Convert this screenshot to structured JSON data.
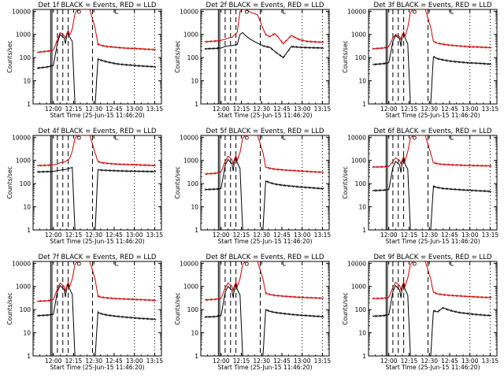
{
  "colors": {
    "events": "#000000",
    "lld": "#cc0000",
    "background": "#ffffff"
  },
  "chart_data": [
    {
      "type": "line",
      "title": "Det 1f BLACK = Events, RED = LLD",
      "xlabel": "Start Time (25-Jun-15 11:46:20)",
      "ylabel": "Counts/sec",
      "xticks": [
        "12:00",
        "12:15",
        "12:30",
        "12:45",
        "13:00",
        "13:15"
      ],
      "yticks": [
        "1",
        "10",
        "100",
        "1000",
        "10000"
      ],
      "x_minutes": [
        -12,
        -4,
        0,
        3,
        5,
        8,
        9,
        10,
        11,
        12,
        14,
        16,
        18,
        22,
        27,
        31,
        33,
        36,
        40,
        46,
        52,
        58,
        64,
        70,
        76
      ],
      "series": [
        {
          "values": [
            35,
            40,
            45,
            420,
            1000,
            700,
            400,
            1000,
            1400,
            800,
            500,
            1,
            1,
            1,
            1,
            1,
            85,
            75,
            65,
            55,
            50,
            47,
            44,
            42,
            40
          ]
        },
        {
          "values": [
            170,
            190,
            210,
            600,
            1200,
            900,
            700,
            1100,
            1500,
            900,
            1700,
            8000,
            12000,
            12000,
            12000,
            1800,
            380,
            330,
            300,
            280,
            260,
            250,
            240,
            230,
            220
          ]
        }
      ]
    },
    {
      "type": "line",
      "title": "Det 2f BLACK = Events, RED = LLD",
      "xlabel": "Start Time (25-Jun-15 11:46:20)",
      "ylabel": "Counts/sec",
      "xticks": [
        "12:00",
        "12:15",
        "12:30",
        "12:45",
        "13:00",
        "13:15"
      ],
      "yticks": [
        "1",
        "10",
        "100",
        "1000",
        "10000"
      ],
      "x_minutes": [
        -12,
        -4,
        0,
        3,
        5,
        8,
        9,
        10,
        11,
        12,
        14,
        16,
        18,
        22,
        27,
        31,
        33,
        36,
        40,
        46,
        52,
        58,
        64,
        70,
        76
      ],
      "series": [
        {
          "values": [
            240,
            250,
            260,
            300,
            320,
            330,
            340,
            350,
            360,
            370,
            1000,
            1200,
            900,
            600,
            420,
            330,
            300,
            280,
            180,
            100,
            300,
            280,
            270,
            265,
            260
          ]
        },
        {
          "values": [
            480,
            520,
            560,
            620,
            700,
            750,
            850,
            950,
            1100,
            1300,
            10000,
            12000,
            12000,
            9000,
            7000,
            1800,
            1000,
            800,
            1100,
            400,
            900,
            600,
            500,
            480,
            460
          ]
        }
      ]
    },
    {
      "type": "line",
      "title": "Det 3f BLACK = Events, RED = LLD",
      "xlabel": "Start Time (25-Jun-15 11:46:20)",
      "ylabel": "Counts/sec",
      "xticks": [
        "12:00",
        "12:15",
        "12:30",
        "12:45",
        "13:00",
        "13:15"
      ],
      "yticks": [
        "1",
        "10",
        "100",
        "1000",
        "10000"
      ],
      "x_minutes": [
        -12,
        -4,
        0,
        3,
        5,
        8,
        9,
        10,
        11,
        12,
        14,
        16,
        18,
        22,
        27,
        31,
        33,
        36,
        40,
        46,
        52,
        58,
        64,
        70,
        76
      ],
      "series": [
        {
          "values": [
            50,
            55,
            60,
            500,
            900,
            650,
            300,
            900,
            1200,
            700,
            400,
            1,
            1,
            1,
            1,
            1,
            110,
            90,
            80,
            70,
            65,
            60,
            58,
            55,
            52
          ]
        },
        {
          "values": [
            240,
            260,
            300,
            700,
            1000,
            800,
            600,
            1000,
            1300,
            800,
            2000,
            9000,
            12000,
            12000,
            12000,
            2000,
            500,
            420,
            380,
            340,
            320,
            300,
            290,
            280,
            270
          ]
        }
      ]
    },
    {
      "type": "line",
      "title": "Det 4f BLACK = Events, RED = LLD",
      "xlabel": "Start Time (25-Jun-15 11:46:20)",
      "ylabel": "Counts/sec",
      "xticks": [
        "12:00",
        "12:15",
        "12:30",
        "12:45",
        "13:00",
        "13:15"
      ],
      "yticks": [
        "1",
        "10",
        "100",
        "1000",
        "10000"
      ],
      "x_minutes": [
        -12,
        -4,
        0,
        3,
        5,
        8,
        9,
        10,
        11,
        12,
        14,
        16,
        18,
        22,
        27,
        31,
        33,
        36,
        40,
        46,
        52,
        58,
        64,
        70,
        76
      ],
      "series": [
        {
          "values": [
            320,
            330,
            340,
            360,
            380,
            400,
            410,
            420,
            440,
            460,
            500,
            1,
            1,
            1,
            1,
            1,
            400,
            380,
            370,
            360,
            350,
            345,
            340,
            335,
            330
          ]
        },
        {
          "values": [
            600,
            620,
            650,
            700,
            800,
            850,
            900,
            1000,
            1100,
            1200,
            2500,
            9000,
            12000,
            12000,
            12000,
            2000,
            900,
            800,
            750,
            700,
            680,
            660,
            640,
            620,
            600
          ]
        }
      ]
    },
    {
      "type": "line",
      "title": "Det 5f BLACK = Events, RED = LLD",
      "xlabel": "Start Time (25-Jun-15 11:46:20)",
      "ylabel": "Counts/sec",
      "xticks": [
        "12:00",
        "12:15",
        "12:30",
        "12:45",
        "13:00",
        "13:15"
      ],
      "yticks": [
        "1",
        "10",
        "100",
        "1000",
        "10000"
      ],
      "x_minutes": [
        -12,
        -4,
        0,
        3,
        5,
        8,
        9,
        10,
        11,
        12,
        14,
        16,
        18,
        22,
        27,
        31,
        33,
        36,
        40,
        46,
        52,
        58,
        64,
        70,
        76
      ],
      "series": [
        {
          "values": [
            55,
            58,
            62,
            600,
            1100,
            750,
            350,
            1000,
            1300,
            800,
            450,
            1,
            1,
            1,
            1,
            1,
            130,
            110,
            95,
            85,
            78,
            72,
            68,
            64,
            60
          ]
        },
        {
          "values": [
            260,
            280,
            320,
            900,
            1500,
            1100,
            700,
            1200,
            1600,
            1000,
            2200,
            9000,
            12000,
            12000,
            12000,
            2200,
            520,
            460,
            420,
            390,
            370,
            350,
            335,
            320,
            310
          ]
        }
      ]
    },
    {
      "type": "line",
      "title": "Det 6f BLACK = Events, RED = LLD",
      "xlabel": "Start Time (25-Jun-15 11:46:20)",
      "ylabel": "Counts/sec",
      "xticks": [
        "12:00",
        "12:15",
        "12:30",
        "12:45",
        "13:00",
        "13:15"
      ],
      "yticks": [
        "1",
        "10",
        "100",
        "1000",
        "10000"
      ],
      "x_minutes": [
        -12,
        -4,
        0,
        3,
        5,
        8,
        9,
        10,
        11,
        12,
        14,
        16,
        18,
        22,
        27,
        31,
        33,
        36,
        40,
        46,
        52,
        58,
        64,
        70,
        76
      ],
      "series": [
        {
          "values": [
            50,
            52,
            55,
            500,
            900,
            650,
            300,
            850,
            1200,
            700,
            420,
            1,
            1,
            1,
            1,
            1,
            75,
            68,
            62,
            58,
            55,
            52,
            50,
            48,
            46
          ]
        },
        {
          "values": [
            520,
            530,
            560,
            900,
            1300,
            1000,
            700,
            1100,
            1500,
            950,
            2400,
            9000,
            12000,
            12000,
            12000,
            2000,
            800,
            720,
            680,
            650,
            630,
            610,
            600,
            590,
            580
          ]
        }
      ]
    },
    {
      "type": "line",
      "title": "Det 7f BLACK = Events, RED = LLD",
      "xlabel": "Start Time (25-Jun-15 11:46:20)",
      "ylabel": "Counts/sec",
      "xticks": [
        "12:00",
        "12:15",
        "12:30",
        "12:45",
        "13:00",
        "13:15"
      ],
      "yticks": [
        "1",
        "10",
        "100",
        "1000",
        "10000"
      ],
      "x_minutes": [
        -12,
        -4,
        0,
        3,
        5,
        8,
        9,
        10,
        11,
        12,
        14,
        16,
        18,
        22,
        27,
        31,
        33,
        36,
        40,
        46,
        52,
        58,
        64,
        70,
        76
      ],
      "series": [
        {
          "values": [
            55,
            58,
            62,
            600,
            1100,
            750,
            350,
            1000,
            1300,
            800,
            450,
            1,
            1,
            1,
            1,
            1,
            75,
            65,
            58,
            52,
            48,
            45,
            42,
            40,
            38
          ]
        },
        {
          "values": [
            230,
            240,
            270,
            800,
            1400,
            1000,
            600,
            1100,
            1500,
            950,
            2100,
            9000,
            12000,
            12000,
            12000,
            2000,
            380,
            340,
            320,
            300,
            290,
            280,
            270,
            260,
            250
          ]
        }
      ]
    },
    {
      "type": "line",
      "title": "Det 8f BLACK = Events, RED = LLD",
      "xlabel": "Start Time (25-Jun-15 11:46:20)",
      "ylabel": "Counts/sec",
      "xticks": [
        "12:00",
        "12:15",
        "12:30",
        "12:45",
        "13:00",
        "13:15"
      ],
      "yticks": [
        "1",
        "10",
        "100",
        "1000",
        "10000"
      ],
      "x_minutes": [
        -12,
        -4,
        0,
        3,
        5,
        8,
        9,
        10,
        11,
        12,
        14,
        16,
        18,
        22,
        27,
        31,
        33,
        36,
        40,
        46,
        52,
        58,
        64,
        70,
        76
      ],
      "series": [
        {
          "values": [
            48,
            50,
            55,
            550,
            1000,
            700,
            320,
            950,
            1250,
            750,
            430,
            1,
            1,
            1,
            1,
            1,
            100,
            85,
            75,
            68,
            62,
            58,
            55,
            52,
            50
          ]
        },
        {
          "values": [
            260,
            280,
            310,
            850,
            1400,
            1050,
            650,
            1150,
            1550,
            980,
            2200,
            9000,
            12000,
            12000,
            12000,
            2100,
            520,
            450,
            410,
            380,
            360,
            340,
            330,
            320,
            310
          ]
        }
      ]
    },
    {
      "type": "line",
      "title": "Det 9f BLACK = Events, RED = LLD",
      "xlabel": "Start Time (25-Jun-15 11:46:20)",
      "ylabel": "Counts/sec",
      "xticks": [
        "12:00",
        "12:15",
        "12:30",
        "12:45",
        "13:00",
        "13:15"
      ],
      "yticks": [
        "1",
        "10",
        "100",
        "1000",
        "10000"
      ],
      "x_minutes": [
        -12,
        -4,
        0,
        3,
        5,
        8,
        9,
        10,
        11,
        12,
        14,
        16,
        18,
        22,
        27,
        31,
        33,
        36,
        40,
        46,
        52,
        58,
        64,
        70,
        76
      ],
      "series": [
        {
          "values": [
            52,
            55,
            60,
            600,
            1100,
            700,
            320,
            950,
            1250,
            750,
            430,
            1,
            1,
            1,
            1,
            1,
            90,
            80,
            120,
            90,
            75,
            68,
            62,
            58,
            55
          ]
        },
        {
          "values": [
            300,
            310,
            340,
            900,
            1500,
            1100,
            700,
            1150,
            1600,
            1000,
            2300,
            9000,
            12000,
            12000,
            12000,
            2100,
            560,
            480,
            440,
            410,
            390,
            370,
            355,
            340,
            330
          ]
        }
      ]
    }
  ]
}
